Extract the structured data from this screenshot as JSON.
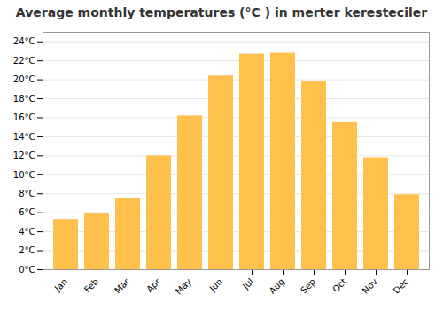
{
  "chart_data": {
    "type": "bar",
    "title": "Average monthly temperatures (°C ) in merter keresteciler",
    "categories": [
      "Jan",
      "Feb",
      "Mar",
      "Apr",
      "May",
      "Jun",
      "Jul",
      "Aug",
      "Sep",
      "Oct",
      "Nov",
      "Dec"
    ],
    "values": [
      5.3,
      5.9,
      7.5,
      12.0,
      16.2,
      20.4,
      22.7,
      22.8,
      19.8,
      15.5,
      11.8,
      7.9
    ],
    "color": "#FFC04C",
    "ylim": [
      0,
      25
    ],
    "yticks": [
      {
        "value": 0,
        "label": "0°C"
      },
      {
        "value": 2,
        "label": "2°C"
      },
      {
        "value": 4,
        "label": "4°C"
      },
      {
        "value": 6,
        "label": "6°C"
      },
      {
        "value": 8,
        "label": "8°C"
      },
      {
        "value": 10,
        "label": "10°C"
      },
      {
        "value": 12,
        "label": "12°C"
      },
      {
        "value": 14,
        "label": "14°C"
      },
      {
        "value": 16,
        "label": "16°C"
      },
      {
        "value": 18,
        "label": "18°C"
      },
      {
        "value": 20,
        "label": "20°C"
      },
      {
        "value": 22,
        "label": "22°C"
      },
      {
        "value": 24,
        "label": "24°C"
      }
    ],
    "grid": true
  }
}
